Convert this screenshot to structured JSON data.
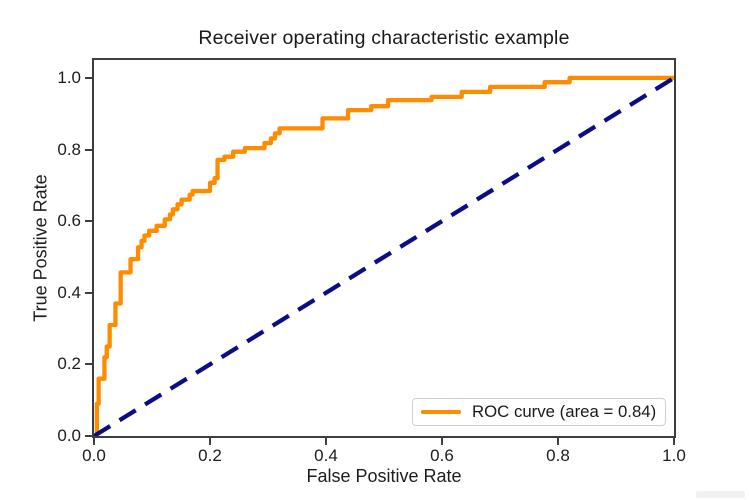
{
  "figure": {
    "background": "#ffffff"
  },
  "chart_data": {
    "type": "line",
    "title": "Receiver operating characteristic example",
    "xlabel": "False Positive Rate",
    "ylabel": "True Positive Rate",
    "xlim": [
      0.0,
      1.0
    ],
    "ylim": [
      0.0,
      1.05
    ],
    "xticks": [
      0.0,
      0.2,
      0.4,
      0.6,
      0.8,
      1.0
    ],
    "xtick_labels": [
      "0.0",
      "0.2",
      "0.4",
      "0.6",
      "0.8",
      "1.0"
    ],
    "yticks": [
      0.0,
      0.2,
      0.4,
      0.6,
      0.8,
      1.0
    ],
    "ytick_labels": [
      "0.0",
      "0.2",
      "0.4",
      "0.6",
      "0.8",
      "1.0"
    ],
    "grid": false,
    "legend_position": "lower right",
    "colors": {
      "roc_curve": "#ff8c00",
      "chance_line": "#0c0c87",
      "spine": "#3d3d3d",
      "text": "#1d1d1d"
    },
    "series": [
      {
        "key": "roc",
        "name": "ROC curve (area = 0.84)",
        "color": "#ff8c00",
        "style": "solid",
        "line_width": 4.3,
        "points": [
          [
            0.005,
            0.0
          ],
          [
            0.005,
            0.09
          ],
          [
            0.008,
            0.09
          ],
          [
            0.008,
            0.16
          ],
          [
            0.018,
            0.16
          ],
          [
            0.018,
            0.22
          ],
          [
            0.022,
            0.22
          ],
          [
            0.022,
            0.25
          ],
          [
            0.027,
            0.25
          ],
          [
            0.027,
            0.31
          ],
          [
            0.037,
            0.31
          ],
          [
            0.037,
            0.37
          ],
          [
            0.046,
            0.37
          ],
          [
            0.046,
            0.457
          ],
          [
            0.063,
            0.457
          ],
          [
            0.063,
            0.494
          ],
          [
            0.076,
            0.494
          ],
          [
            0.076,
            0.527
          ],
          [
            0.082,
            0.527
          ],
          [
            0.082,
            0.545
          ],
          [
            0.087,
            0.545
          ],
          [
            0.087,
            0.56
          ],
          [
            0.095,
            0.56
          ],
          [
            0.095,
            0.573
          ],
          [
            0.108,
            0.573
          ],
          [
            0.108,
            0.587
          ],
          [
            0.122,
            0.587
          ],
          [
            0.122,
            0.605
          ],
          [
            0.131,
            0.605
          ],
          [
            0.131,
            0.619
          ],
          [
            0.136,
            0.619
          ],
          [
            0.136,
            0.633
          ],
          [
            0.144,
            0.633
          ],
          [
            0.144,
            0.647
          ],
          [
            0.151,
            0.647
          ],
          [
            0.151,
            0.66
          ],
          [
            0.165,
            0.66
          ],
          [
            0.165,
            0.674
          ],
          [
            0.17,
            0.674
          ],
          [
            0.17,
            0.684
          ],
          [
            0.2,
            0.684
          ],
          [
            0.2,
            0.707
          ],
          [
            0.208,
            0.707
          ],
          [
            0.208,
            0.72
          ],
          [
            0.213,
            0.72
          ],
          [
            0.213,
            0.771
          ],
          [
            0.225,
            0.771
          ],
          [
            0.225,
            0.78
          ],
          [
            0.24,
            0.78
          ],
          [
            0.24,
            0.794
          ],
          [
            0.26,
            0.794
          ],
          [
            0.26,
            0.804
          ],
          [
            0.294,
            0.804
          ],
          [
            0.294,
            0.818
          ],
          [
            0.305,
            0.818
          ],
          [
            0.305,
            0.831
          ],
          [
            0.312,
            0.831
          ],
          [
            0.312,
            0.845
          ],
          [
            0.32,
            0.845
          ],
          [
            0.32,
            0.859
          ],
          [
            0.394,
            0.859
          ],
          [
            0.394,
            0.887
          ],
          [
            0.438,
            0.887
          ],
          [
            0.438,
            0.91
          ],
          [
            0.478,
            0.91
          ],
          [
            0.478,
            0.921
          ],
          [
            0.507,
            0.921
          ],
          [
            0.507,
            0.938
          ],
          [
            0.582,
            0.938
          ],
          [
            0.582,
            0.947
          ],
          [
            0.634,
            0.947
          ],
          [
            0.634,
            0.961
          ],
          [
            0.683,
            0.961
          ],
          [
            0.683,
            0.975
          ],
          [
            0.777,
            0.975
          ],
          [
            0.777,
            0.988
          ],
          [
            0.82,
            0.988
          ],
          [
            0.82,
            1.0
          ],
          [
            1.0,
            1.0
          ]
        ]
      },
      {
        "key": "chance",
        "name": "chance diagonal",
        "color": "#0c0c87",
        "style": "dashed",
        "line_width": 4.3,
        "points": [
          [
            0.0,
            0.0
          ],
          [
            1.0,
            1.0
          ]
        ]
      }
    ],
    "legend": {
      "entries": [
        {
          "label": "ROC curve (area = 0.84)",
          "color": "#ff8c00"
        }
      ]
    }
  }
}
